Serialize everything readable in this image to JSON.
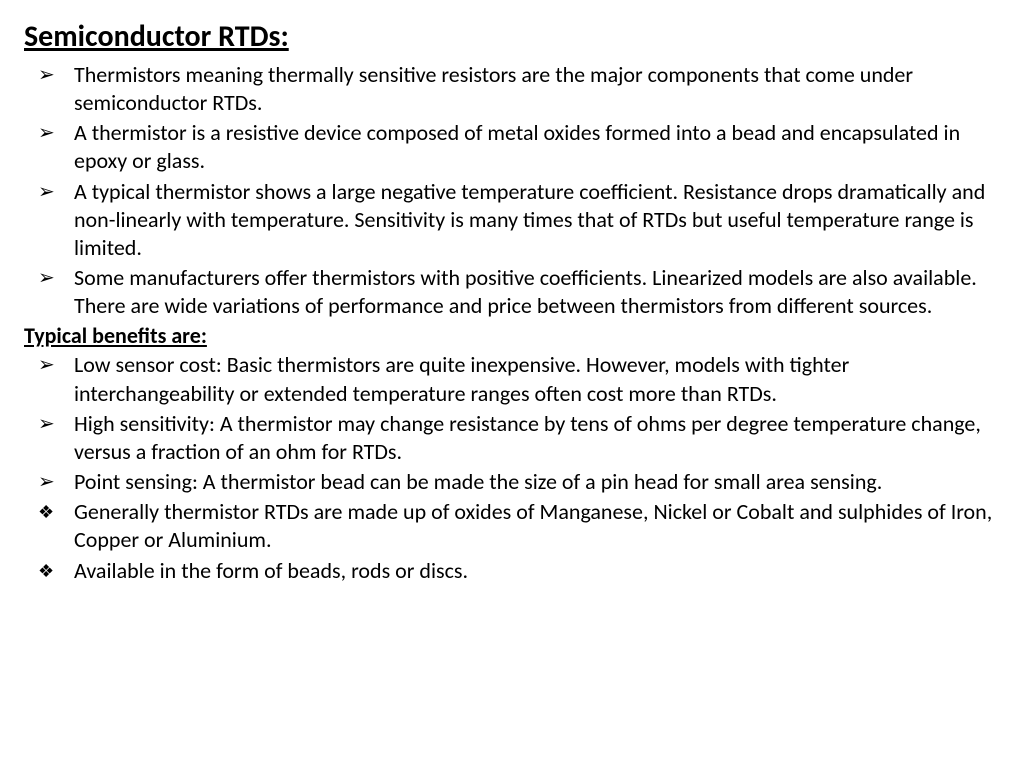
{
  "title": "Semiconductor RTDs:",
  "section1": [
    "Thermistors meaning thermally sensitive resistors are the major components that come under semiconductor RTDs.",
    "A thermistor is a resistive device composed of metal oxides formed into a bead and encapsulated in epoxy or glass.",
    "A typical thermistor shows a large negative temperature coefficient. Resistance drops dramatically and non-linearly with temperature. Sensitivity is many times that of RTDs but useful temperature range is limited.",
    "Some manufacturers offer thermistors with positive coefficients. Linearized models are also available. There are wide variations of performance and price between thermistors from different sources."
  ],
  "subtitle": "Typical benefits are:",
  "section2": [
    " Low sensor cost: Basic thermistors are quite inexpensive. However, models with tighter interchangeability or extended temperature ranges often cost more than RTDs.",
    " High sensitivity: A thermistor may change resistance by tens of ohms per degree temperature change, versus a fraction of an ohm for RTDs.",
    " Point sensing: A thermistor bead can be made the size of a pin head for small area sensing."
  ],
  "section3": [
    "Generally thermistor RTDs are made up of oxides of Manganese, Nickel or Cobalt and sulphides of Iron, Copper or Aluminium.",
    "Available in the form of beads, rods or discs."
  ]
}
